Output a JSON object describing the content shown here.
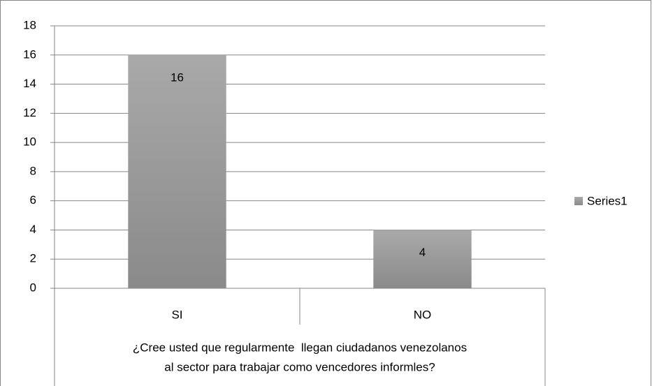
{
  "chart_data": {
    "type": "bar",
    "categories": [
      "SI",
      "NO"
    ],
    "xlabel": [
      "¿Cree usted que regularmente  llegan ciudadanos venezolanos",
      "al sector para trabajar como vencedores informles?"
    ],
    "series": [
      {
        "name": "Series1",
        "color": "#999999",
        "values": [
          16,
          4
        ]
      }
    ],
    "ylim": [
      0,
      18
    ],
    "yticks": [
      0,
      2,
      4,
      6,
      8,
      10,
      12,
      14,
      16,
      18
    ],
    "grid": true,
    "legend": "right",
    "data_labels": true
  }
}
